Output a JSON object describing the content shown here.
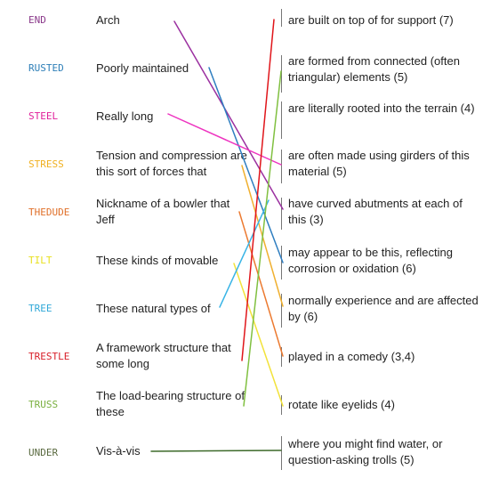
{
  "rows": [
    {
      "word": "END",
      "word_color": "#8b3a8b",
      "clue": "Arch",
      "answer": "are built on top of for support (7)",
      "line_color": "#9b30a0"
    },
    {
      "word": "RUSTED",
      "word_color": "#2e7fb8",
      "clue": "Poorly maintained",
      "answer": "are formed from connected (often triangular) elements (5)",
      "line_color": "#2f7ec0"
    },
    {
      "word": "STEEL",
      "word_color": "#e0209a",
      "clue": "Really long",
      "answer": "are literally rooted into the terrain (4)",
      "line_color": "#ee34c0"
    },
    {
      "word": "STRESS",
      "word_color": "#f0b020",
      "clue": "Tension and compression are this sort of forces that",
      "answer": "are often made using girders of this material (5)",
      "line_color": "#f0b030"
    },
    {
      "word": "THEDUDE",
      "word_color": "#e0702a",
      "clue": "Nickname of a bowler that Jeff",
      "answer": "have curved abutments at each of this (3)",
      "line_color": "#ec7a30"
    },
    {
      "word": "TILT",
      "word_color": "#e8e020",
      "clue": "These kinds of movable",
      "answer": "may appear to be this, reflecting corrosion or oxidation (6)",
      "line_color": "#f2e23a"
    },
    {
      "word": "TREE",
      "word_color": "#30a8d8",
      "clue": "These natural types of",
      "answer": "normally experience and are affected by (6)",
      "line_color": "#38b4e6"
    },
    {
      "word": "TRESTLE",
      "word_color": "#d8202a",
      "clue": "A framework structure that some long",
      "answer": "played in a comedy (3,4)",
      "line_color": "#e0151a"
    },
    {
      "word": "TRUSS",
      "word_color": "#7ab040",
      "clue": "The load-bearing structure of these",
      "answer": "rotate like eyelids (4)",
      "line_color": "#80c040"
    },
    {
      "word": "UNDER",
      "word_color": "#5a6a40",
      "clue": "Vis-à-vis",
      "answer": "where you might find water, or question-asking trolls (5)",
      "line_color": "#3d6a2a"
    }
  ]
}
